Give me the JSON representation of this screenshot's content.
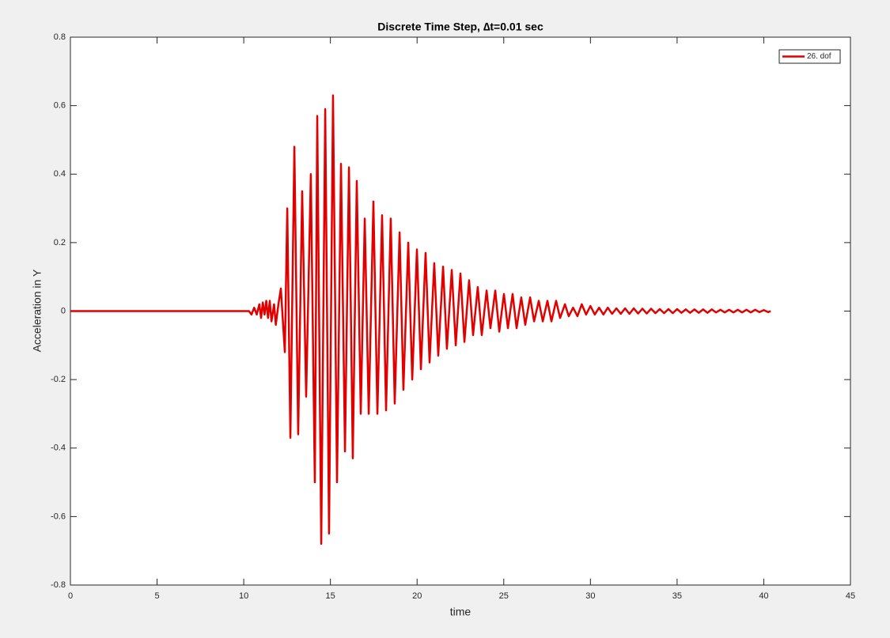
{
  "chart_data": {
    "type": "line",
    "title": "Discrete Time Step, ∆t=0.01 sec",
    "x_label": "time",
    "y_label": "Acceleration in Y",
    "xlim": [
      0,
      45
    ],
    "ylim": [
      -0.8,
      0.8
    ],
    "xticks": [
      0,
      5,
      10,
      15,
      20,
      25,
      30,
      35,
      40,
      45
    ],
    "yticks": [
      -0.8,
      -0.6,
      -0.4,
      -0.2,
      0,
      0.2,
      0.4,
      0.6,
      0.8
    ],
    "legend_position": "upper right",
    "series": [
      {
        "name": "26. dof",
        "color": "#e00000",
        "x": [
          0,
          10.3,
          10.45,
          10.6,
          10.75,
          10.9,
          11.0,
          11.1,
          11.2,
          11.3,
          11.4,
          11.5,
          11.6,
          11.75,
          11.85,
          12.0,
          12.14,
          12.37,
          12.51,
          12.69,
          12.92,
          13.14,
          13.37,
          13.6,
          13.87,
          14.1,
          14.24,
          14.47,
          14.7,
          14.92,
          15.15,
          15.38,
          15.61,
          15.84,
          16.07,
          16.29,
          16.52,
          16.75,
          16.98,
          17.21,
          17.48,
          17.71,
          17.98,
          18.21,
          18.48,
          18.71,
          18.99,
          19.21,
          19.49,
          19.72,
          19.99,
          20.22,
          20.49,
          20.72,
          20.99,
          21.22,
          21.5,
          21.72,
          22.0,
          22.23,
          22.5,
          22.73,
          23.0,
          23.23,
          23.5,
          23.73,
          24.01,
          24.23,
          24.51,
          24.74,
          25.01,
          25.24,
          25.51,
          25.74,
          26.01,
          26.24,
          26.52,
          26.75,
          27.02,
          27.25,
          27.52,
          27.75,
          28.02,
          28.25,
          28.53,
          28.75,
          29.0,
          29.25,
          29.5,
          29.75,
          30.0,
          30.25,
          30.5,
          30.75,
          31.0,
          31.25,
          31.5,
          31.75,
          32.0,
          32.25,
          32.5,
          32.75,
          33.0,
          33.25,
          33.5,
          33.75,
          34.0,
          34.25,
          34.5,
          34.75,
          35.0,
          35.25,
          35.5,
          35.75,
          36.0,
          36.25,
          36.5,
          36.75,
          37.0,
          37.25,
          37.5,
          37.75,
          38.0,
          38.25,
          38.5,
          38.75,
          39.0,
          39.25,
          39.5,
          39.75,
          40.0,
          40.25,
          40.4
        ],
        "values": [
          0,
          0,
          -0.01,
          0.01,
          -0.01,
          0.02,
          -0.02,
          0.025,
          -0.01,
          0.03,
          -0.02,
          0.03,
          -0.03,
          0.02,
          -0.04,
          0.02,
          0.066,
          -0.12,
          0.3,
          -0.37,
          0.48,
          -0.36,
          0.35,
          -0.25,
          0.4,
          -0.5,
          0.57,
          -0.68,
          0.59,
          -0.65,
          0.63,
          -0.5,
          0.43,
          -0.41,
          0.42,
          -0.43,
          0.38,
          -0.3,
          0.27,
          -0.3,
          0.32,
          -0.3,
          0.28,
          -0.29,
          0.27,
          -0.27,
          0.23,
          -0.23,
          0.2,
          -0.2,
          0.18,
          -0.17,
          0.17,
          -0.15,
          0.14,
          -0.13,
          0.13,
          -0.11,
          0.12,
          -0.1,
          0.11,
          -0.09,
          0.09,
          -0.07,
          0.07,
          -0.07,
          0.06,
          -0.05,
          0.06,
          -0.06,
          0.05,
          -0.05,
          0.05,
          -0.05,
          0.04,
          -0.04,
          0.04,
          -0.03,
          0.03,
          -0.03,
          0.03,
          -0.03,
          0.03,
          -0.02,
          0.02,
          -0.015,
          0.01,
          -0.015,
          0.02,
          -0.01,
          0.015,
          -0.01,
          0.01,
          -0.01,
          0.01,
          -0.008,
          0.008,
          -0.008,
          0.008,
          -0.008,
          0.008,
          -0.007,
          0.007,
          -0.007,
          0.007,
          -0.006,
          0.006,
          -0.006,
          0.006,
          -0.006,
          0.006,
          -0.005,
          0.005,
          -0.005,
          0.005,
          -0.005,
          0.005,
          -0.005,
          0.005,
          -0.004,
          0.004,
          -0.004,
          0.004,
          -0.004,
          0.004,
          -0.004,
          0.004,
          -0.004,
          0.004,
          -0.003,
          0.003,
          -0.003,
          0
        ]
      }
    ]
  }
}
